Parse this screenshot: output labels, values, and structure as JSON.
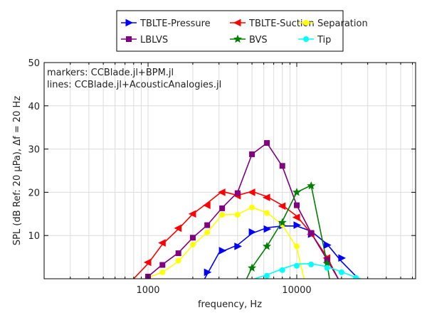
{
  "chart_data": {
    "type": "line",
    "xlabel": "frequency, Hz",
    "ylabel": "SPL (dB Ref: 20 μPa), Δf = 20 Hz",
    "xscale": "log",
    "xlim": [
      200,
      63000
    ],
    "ylim": [
      0,
      50
    ],
    "x_ticks": [
      1000,
      10000
    ],
    "x_tick_labels": [
      "1000",
      "10000"
    ],
    "y_ticks": [
      10,
      20,
      30,
      40,
      50
    ],
    "y_tick_labels": [
      "10",
      "20",
      "30",
      "40",
      "50"
    ],
    "grid": true,
    "legend_position": "top-outside",
    "annotations": [
      "markers: CCBlade.jl+BPM.jl",
      "lines: CCBlade.jl+AcousticAnalogies.jl"
    ],
    "series": [
      {
        "name": "TBLTE-Pressure",
        "color": "#0000ff",
        "marker": "triangle-right",
        "marker_points": [
          [
            2500,
            1.5
          ],
          [
            3150,
            6.5
          ],
          [
            4000,
            7.5
          ],
          [
            5000,
            10.8
          ],
          [
            6300,
            11.5
          ],
          [
            8000,
            12.3
          ],
          [
            10000,
            12.4
          ],
          [
            12500,
            10.3
          ],
          [
            16000,
            7.8
          ],
          [
            20000,
            4.8
          ]
        ],
        "line_points": [
          [
            2400,
            0
          ],
          [
            3000,
            6
          ],
          [
            4000,
            7.8
          ],
          [
            5000,
            10.5
          ],
          [
            6300,
            11.8
          ],
          [
            8000,
            12.2
          ],
          [
            10000,
            12.2
          ],
          [
            12500,
            11.0
          ],
          [
            16000,
            8.0
          ],
          [
            20000,
            4.0
          ],
          [
            26000,
            0
          ]
        ]
      },
      {
        "name": "TBLTE-Suction",
        "color": "#ff0000",
        "marker": "triangle-left",
        "marker_points": [
          [
            1000,
            3.8
          ],
          [
            1250,
            8.3
          ],
          [
            1600,
            11.7
          ],
          [
            2000,
            15.0
          ],
          [
            2500,
            17.0
          ],
          [
            3150,
            20.0
          ],
          [
            4000,
            19.2
          ],
          [
            5000,
            20.0
          ],
          [
            6300,
            18.8
          ],
          [
            8000,
            16.8
          ],
          [
            10000,
            14.2
          ],
          [
            12500,
            10.3
          ],
          [
            16000,
            4.8
          ]
        ],
        "line_points": [
          [
            800,
            0
          ],
          [
            1000,
            3.5
          ],
          [
            1250,
            8.0
          ],
          [
            1600,
            11.5
          ],
          [
            2000,
            15.0
          ],
          [
            2500,
            17.5
          ],
          [
            3150,
            20.2
          ],
          [
            4000,
            19.3
          ],
          [
            5000,
            20.2
          ],
          [
            6300,
            19.0
          ],
          [
            8000,
            17.0
          ],
          [
            10000,
            14.5
          ],
          [
            12500,
            10.5
          ],
          [
            16000,
            5.0
          ],
          [
            19000,
            0
          ]
        ]
      },
      {
        "name": "Separation",
        "color": "#ffff00",
        "marker": "circle",
        "marker_points": [
          [
            1000,
            0.5
          ],
          [
            1250,
            1.5
          ],
          [
            1600,
            4.2
          ],
          [
            2000,
            7.9
          ],
          [
            2500,
            10.7
          ],
          [
            3150,
            14.8
          ],
          [
            4000,
            14.8
          ],
          [
            5000,
            16.5
          ],
          [
            6300,
            15.2
          ],
          [
            8000,
            12.5
          ],
          [
            10000,
            7.5
          ]
        ],
        "line_points": [
          [
            950,
            0
          ],
          [
            1250,
            1.5
          ],
          [
            1600,
            4.0
          ],
          [
            2000,
            7.8
          ],
          [
            2500,
            10.7
          ],
          [
            3150,
            14.8
          ],
          [
            4000,
            14.9
          ],
          [
            5000,
            16.5
          ],
          [
            6300,
            15.3
          ],
          [
            8000,
            12.5
          ],
          [
            10000,
            7.2
          ],
          [
            11200,
            0
          ]
        ]
      },
      {
        "name": "LBLVS",
        "color": "#800080",
        "marker": "square",
        "marker_points": [
          [
            1000,
            0.5
          ],
          [
            1250,
            3.2
          ],
          [
            1600,
            5.9
          ],
          [
            2000,
            9.5
          ],
          [
            2500,
            12.4
          ],
          [
            3150,
            16.3
          ],
          [
            4000,
            19.8
          ],
          [
            5000,
            28.8
          ],
          [
            6300,
            31.4
          ],
          [
            8000,
            26.1
          ],
          [
            10000,
            17.0
          ],
          [
            12500,
            10.6
          ],
          [
            16000,
            4.4
          ]
        ],
        "line_points": [
          [
            960,
            0
          ],
          [
            1250,
            3.3
          ],
          [
            1600,
            6.0
          ],
          [
            2000,
            9.5
          ],
          [
            2500,
            12.4
          ],
          [
            3150,
            16.4
          ],
          [
            4000,
            20.0
          ],
          [
            5000,
            28.8
          ],
          [
            6300,
            31.4
          ],
          [
            8000,
            26.0
          ],
          [
            10000,
            17.0
          ],
          [
            12500,
            10.6
          ],
          [
            16000,
            4.4
          ],
          [
            19000,
            0
          ]
        ]
      },
      {
        "name": "BVS",
        "color": "#008000",
        "marker": "star",
        "marker_points": [
          [
            5000,
            2.5
          ],
          [
            6300,
            7.5
          ],
          [
            8000,
            13.0
          ],
          [
            10000,
            20.0
          ],
          [
            12500,
            21.5
          ],
          [
            16000,
            3.5
          ]
        ],
        "line_points": [
          [
            4600,
            0
          ],
          [
            5000,
            2.6
          ],
          [
            6300,
            7.5
          ],
          [
            8000,
            13.3
          ],
          [
            10000,
            20.0
          ],
          [
            12500,
            21.6
          ],
          [
            16000,
            3.5
          ],
          [
            16600,
            0
          ]
        ]
      },
      {
        "name": "Tip",
        "color": "#00ffff",
        "marker": "circle",
        "marker_points": [
          [
            6300,
            0.7
          ],
          [
            8000,
            2.0
          ],
          [
            10000,
            3.0
          ],
          [
            12500,
            3.3
          ],
          [
            16000,
            2.5
          ],
          [
            20000,
            1.5
          ],
          [
            25000,
            0.2
          ]
        ],
        "line_points": [
          [
            5200,
            0
          ],
          [
            6300,
            0.9
          ],
          [
            8000,
            2.3
          ],
          [
            10000,
            3.4
          ],
          [
            12500,
            3.5
          ],
          [
            16000,
            2.8
          ],
          [
            20000,
            1.6
          ],
          [
            25000,
            0.3
          ],
          [
            27000,
            0
          ]
        ]
      }
    ]
  }
}
